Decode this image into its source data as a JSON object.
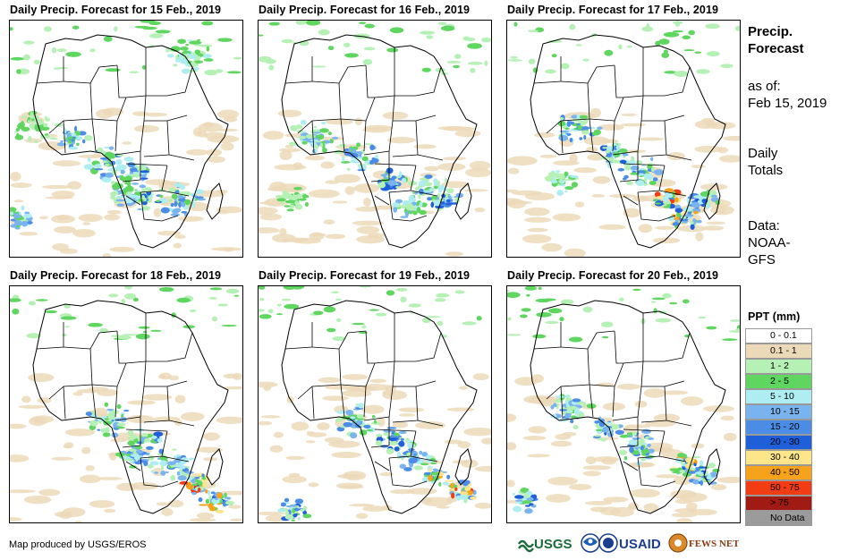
{
  "panels": [
    {
      "title": "Daily Precip. Forecast for 15 Feb., 2019"
    },
    {
      "title": "Daily Precip. Forecast for 16 Feb., 2019"
    },
    {
      "title": "Daily Precip. Forecast for 17 Feb., 2019"
    },
    {
      "title": "Daily Precip. Forecast for 18 Feb., 2019"
    },
    {
      "title": "Daily Precip. Forecast for 19 Feb., 2019"
    },
    {
      "title": "Daily Precip. Forecast for 20 Feb., 2019"
    }
  ],
  "side": {
    "title_line1": "Precip.",
    "title_line2": "Forecast",
    "asof_line1": "as of:",
    "asof_line2": "Feb 15, 2019",
    "daily_line1": "Daily",
    "daily_line2": "Totals",
    "data_line1": "Data:",
    "data_line2": "NOAA-",
    "data_line3": "GFS"
  },
  "legend": {
    "title": "PPT (mm)",
    "items": [
      {
        "label": "0 - 0.1",
        "color": "#ffffff"
      },
      {
        "label": "0.1 - 1",
        "color": "#ecd9b8"
      },
      {
        "label": "1 - 2",
        "color": "#b5f0b5"
      },
      {
        "label": "2 - 5",
        "color": "#5fd65f"
      },
      {
        "label": "5 - 10",
        "color": "#aeeef2"
      },
      {
        "label": "10 - 15",
        "color": "#7ab4ef"
      },
      {
        "label": "15 - 20",
        "color": "#4a8ce6"
      },
      {
        "label": "20 - 30",
        "color": "#1f5fd9"
      },
      {
        "label": "30 - 40",
        "color": "#fde58a"
      },
      {
        "label": "40 - 50",
        "color": "#f7a21b"
      },
      {
        "label": "50 - 75",
        "color": "#f13c14"
      },
      {
        "label": "> 75",
        "color": "#a11a14"
      },
      {
        "label": "No Data",
        "color": "#9b9b9b"
      }
    ]
  },
  "credit": "Map produced by USGS/EROS",
  "logos": {
    "usgs": "USGS",
    "usaid": "USAID",
    "fewsnet": "FEWS NET"
  }
}
